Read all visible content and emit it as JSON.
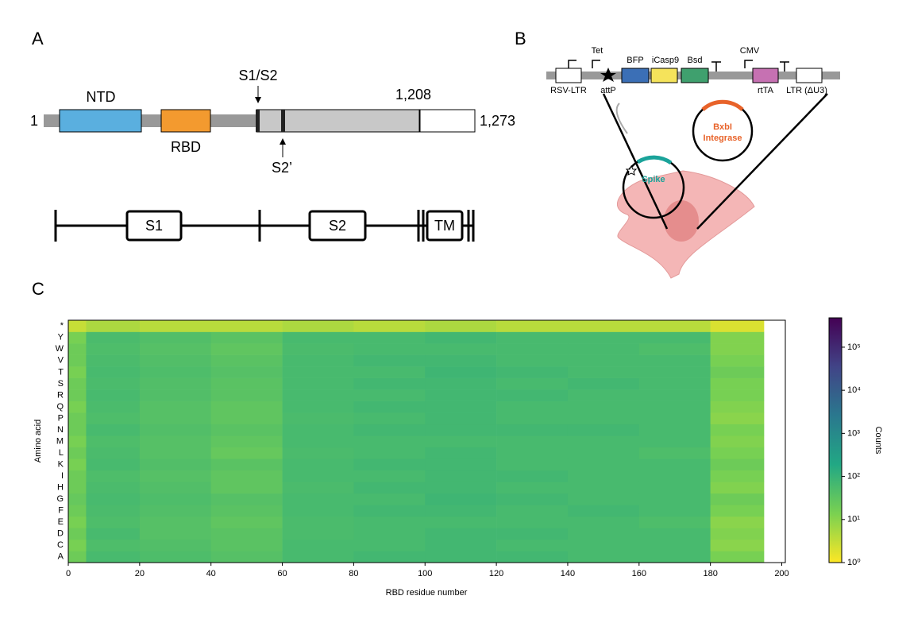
{
  "panel_a": {
    "letter": "A",
    "domains": {
      "ntd": "NTD",
      "rbd": "RBD"
    },
    "cleavage": {
      "s1s2": "S1/S2",
      "s2p": "S2’"
    },
    "positions": {
      "start": "1",
      "end": "1,273",
      "tm_start": "1,208"
    },
    "subunits": {
      "s1": "S1",
      "s2": "S2",
      "tm": "TM"
    }
  },
  "panel_b": {
    "letter": "B",
    "promoters": {
      "tet": "Tet",
      "cmv": "CMV"
    },
    "genes": {
      "bfp": "BFP",
      "icasp9": "iCasp9",
      "bsd": "Bsd",
      "rtta": "rtTA"
    },
    "elements": {
      "rsv": "RSV-LTR",
      "attp": "attP",
      "ltr": "LTR (ΔU3)"
    },
    "plasmids": {
      "spike": "Spike",
      "bxb": "BxbI",
      "integrase": "Integrase"
    }
  },
  "chart_data": {
    "type": "heatmap",
    "letter": "C",
    "x_label": "RBD residue number",
    "y_label": "Amino acid",
    "colorbar_label": "Counts",
    "rows": [
      "A",
      "C",
      "D",
      "E",
      "F",
      "G",
      "H",
      "I",
      "K",
      "L",
      "M",
      "N",
      "P",
      "Q",
      "R",
      "S",
      "T",
      "V",
      "W",
      "Y",
      "*"
    ],
    "bins": [
      0,
      5,
      20,
      40,
      60,
      80,
      100,
      120,
      140,
      160,
      180,
      195,
      201
    ],
    "values": [
      [
        20,
        60,
        50,
        40,
        60,
        70,
        70,
        70,
        60,
        60,
        15
      ],
      [
        15,
        50,
        45,
        35,
        60,
        60,
        70,
        60,
        60,
        60,
        10
      ],
      [
        20,
        60,
        40,
        35,
        55,
        60,
        70,
        70,
        60,
        60,
        12
      ],
      [
        15,
        50,
        40,
        30,
        55,
        60,
        60,
        60,
        60,
        50,
        10
      ],
      [
        20,
        55,
        45,
        35,
        60,
        70,
        70,
        60,
        70,
        60,
        15
      ],
      [
        25,
        60,
        50,
        40,
        60,
        60,
        80,
        70,
        60,
        60,
        20
      ],
      [
        20,
        55,
        45,
        30,
        55,
        70,
        70,
        60,
        60,
        60,
        12
      ],
      [
        20,
        50,
        40,
        30,
        60,
        60,
        70,
        70,
        60,
        60,
        15
      ],
      [
        15,
        60,
        45,
        35,
        60,
        70,
        70,
        60,
        60,
        60,
        20
      ],
      [
        20,
        55,
        40,
        25,
        55,
        60,
        70,
        60,
        60,
        50,
        15
      ],
      [
        15,
        50,
        40,
        30,
        60,
        60,
        60,
        60,
        60,
        60,
        12
      ],
      [
        20,
        60,
        45,
        35,
        60,
        70,
        70,
        70,
        70,
        60,
        15
      ],
      [
        20,
        50,
        40,
        30,
        55,
        60,
        70,
        60,
        60,
        60,
        10
      ],
      [
        15,
        55,
        40,
        30,
        60,
        70,
        70,
        60,
        60,
        60,
        12
      ],
      [
        20,
        60,
        45,
        35,
        60,
        60,
        70,
        70,
        60,
        60,
        15
      ],
      [
        20,
        55,
        45,
        35,
        60,
        70,
        70,
        60,
        70,
        60,
        15
      ],
      [
        15,
        60,
        50,
        40,
        60,
        60,
        80,
        70,
        60,
        60,
        20
      ],
      [
        20,
        55,
        45,
        35,
        60,
        70,
        70,
        60,
        60,
        60,
        15
      ],
      [
        20,
        50,
        40,
        30,
        55,
        60,
        60,
        60,
        60,
        50,
        12
      ],
      [
        15,
        55,
        45,
        35,
        60,
        60,
        70,
        60,
        60,
        60,
        12
      ],
      [
        3,
        5,
        4,
        4,
        5,
        4,
        5,
        4,
        4,
        4,
        2
      ]
    ],
    "xlim": [
      0,
      201
    ],
    "xticks": [
      0,
      20,
      40,
      60,
      80,
      100,
      120,
      140,
      160,
      180,
      200
    ],
    "clim": [
      1,
      480000
    ],
    "log_scale": true,
    "cticks": [
      {
        "value": 1,
        "label": "10⁰"
      },
      {
        "value": 10,
        "label": "10¹"
      },
      {
        "value": 100,
        "label": "10²"
      },
      {
        "value": 1000,
        "label": "10³"
      },
      {
        "value": 10000,
        "label": "10⁴"
      },
      {
        "value": 100000,
        "label": "10⁵"
      }
    ],
    "colorscale": [
      "#fde725",
      "#7ad151",
      "#22a884",
      "#2a788e",
      "#414487",
      "#440154"
    ]
  }
}
